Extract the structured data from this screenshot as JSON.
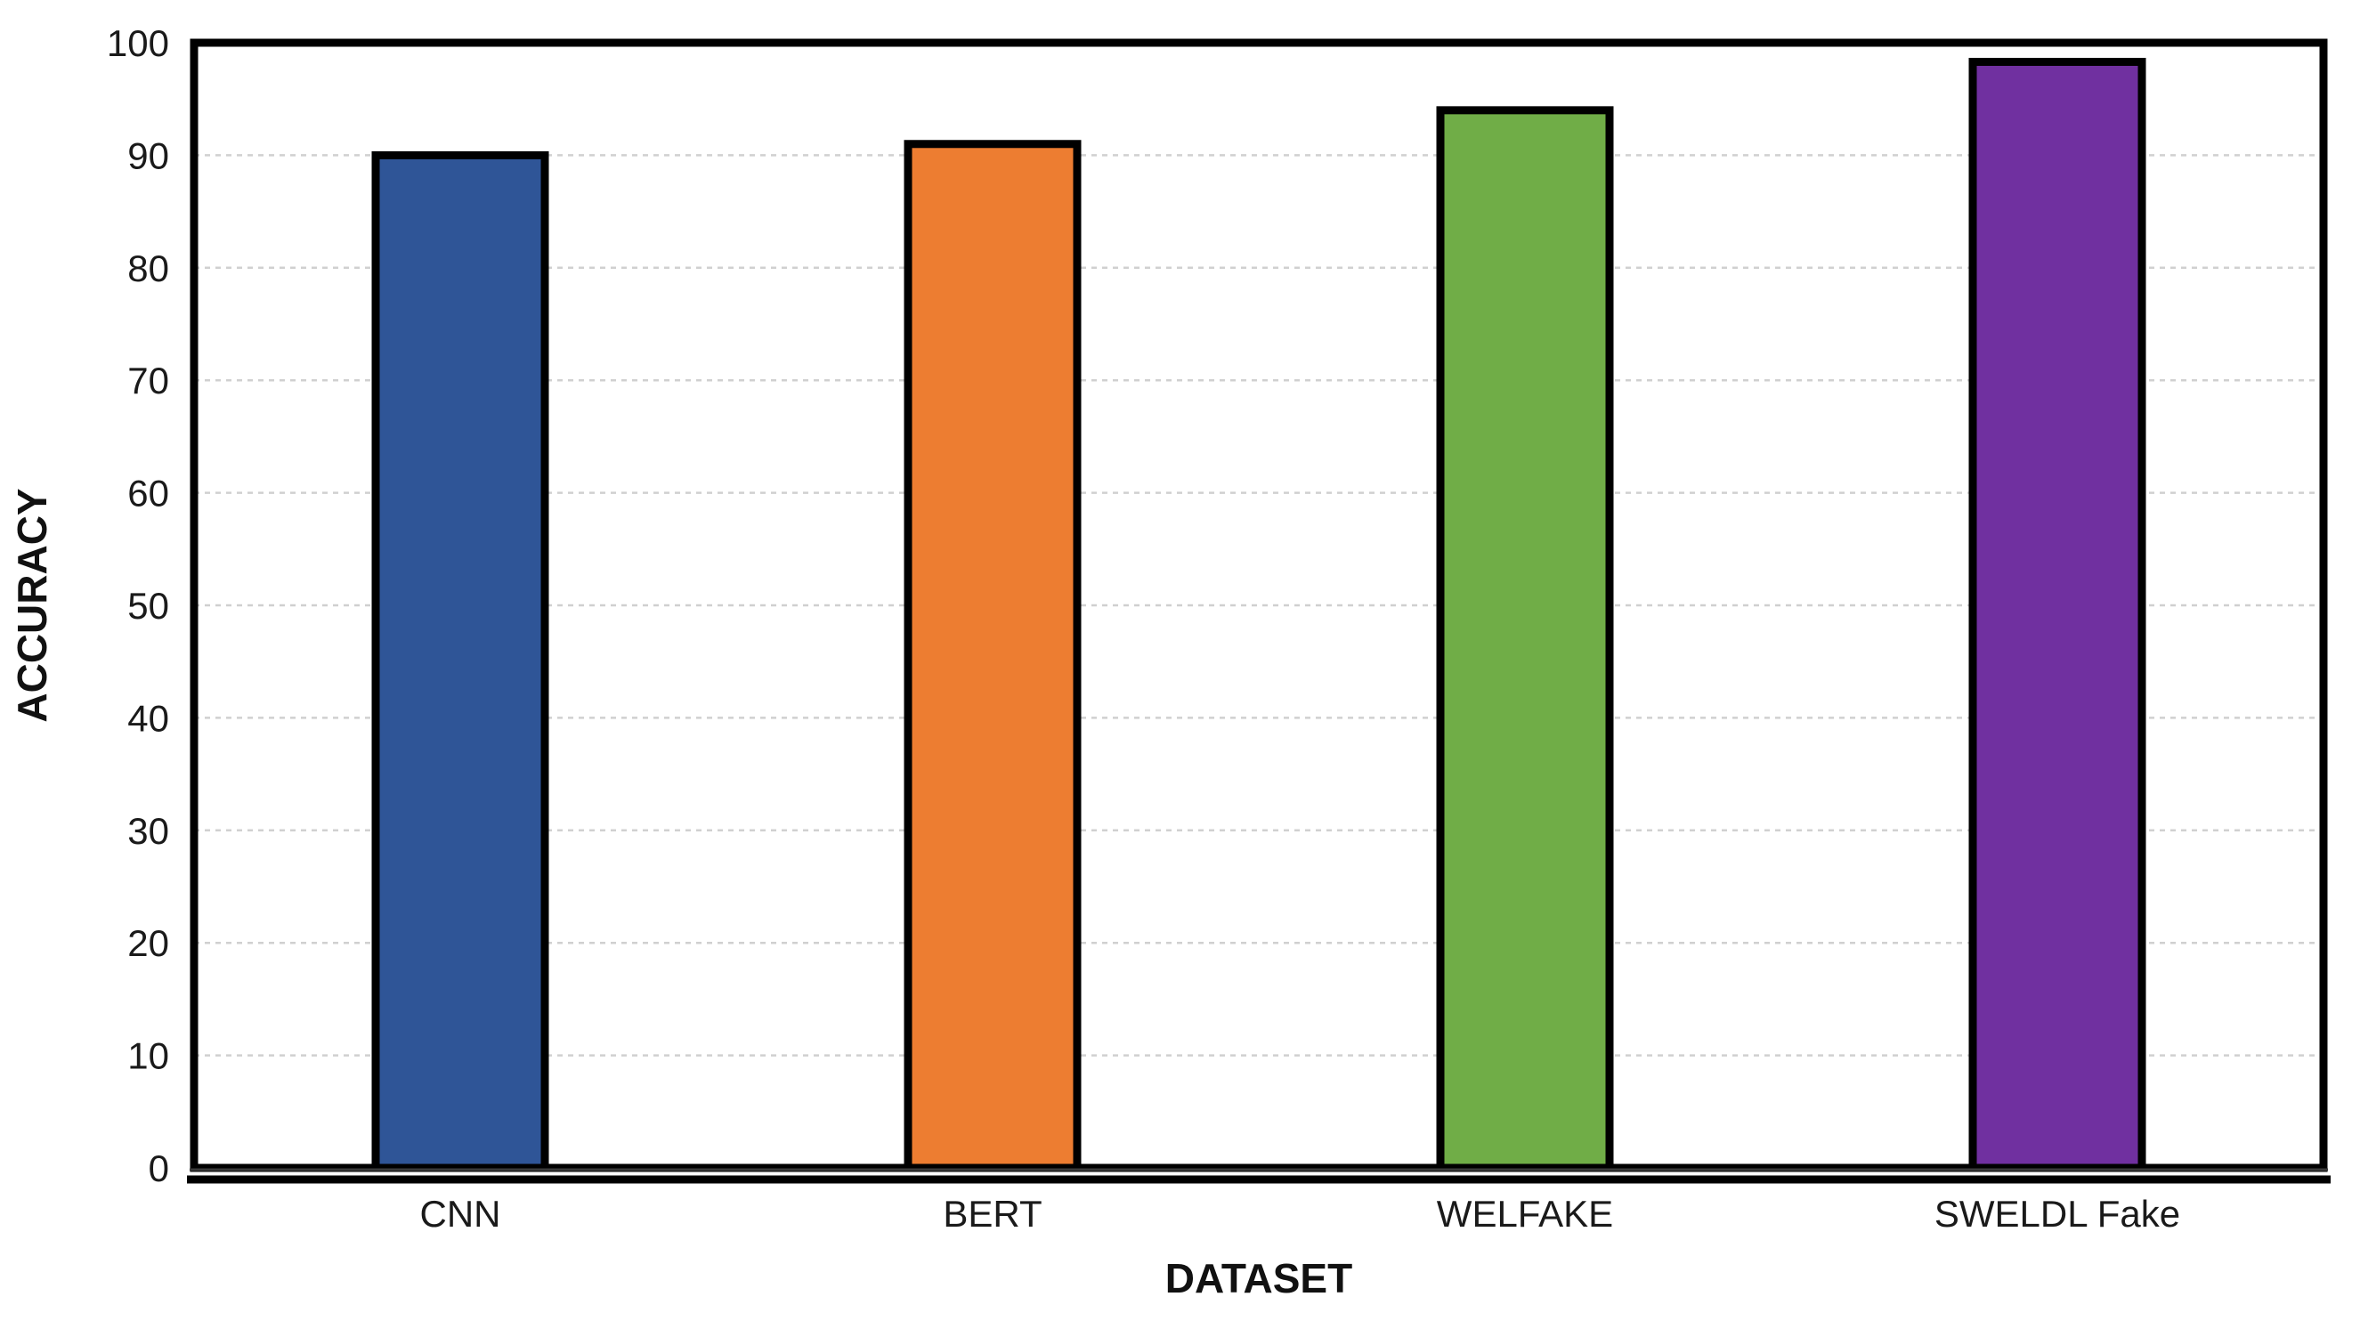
{
  "chart_data": {
    "type": "bar",
    "title": "",
    "categories": [
      "CNN",
      "BERT",
      "WELFAKE",
      "SWELDL Fake"
    ],
    "values": [
      90,
      91,
      94,
      98.3
    ],
    "bar_colors": [
      "#2F5597",
      "#ED7D31",
      "#70AD47",
      "#7030A0"
    ],
    "bar_border_color": "#000000",
    "xlabel": "DATASET",
    "ylabel": "ACCURACY",
    "ylim": [
      0,
      100
    ],
    "yticks": [
      0,
      10,
      20,
      30,
      40,
      50,
      60,
      70,
      80,
      90,
      100
    ],
    "grid": "horizontal-dashed",
    "gridline_color": "#d0d0d0",
    "plot_border_color": "#000000",
    "legend": "none"
  }
}
